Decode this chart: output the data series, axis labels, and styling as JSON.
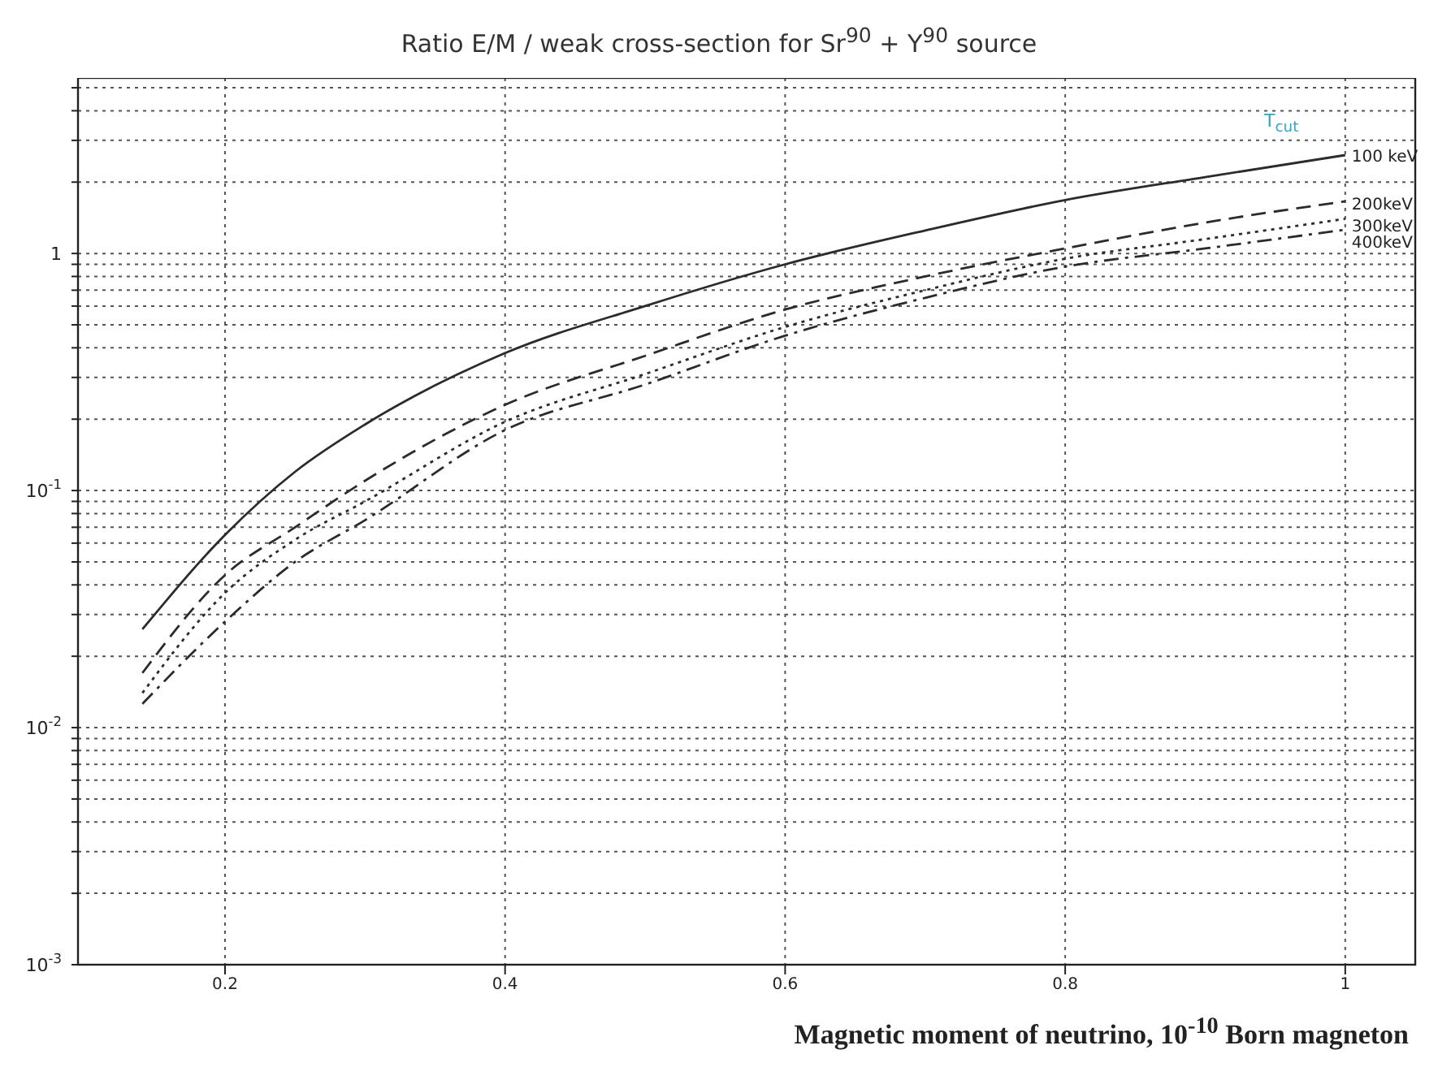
{
  "chart_data": {
    "type": "line",
    "title": "Ratio E/M / weak cross-section for Sr$^{90}$ + Y$^{90}$ source",
    "xlabel": "Magnetic moment of neutrino, 10$^{-10}$ Born magneton",
    "legend_title": "T$_{cut}$",
    "x": [
      0.141,
      0.2,
      0.25,
      0.3,
      0.4,
      0.5,
      0.6,
      0.7,
      0.8,
      0.9,
      1.0
    ],
    "series": [
      {
        "name": "100 keV",
        "color": "#2b2b2b",
        "line_style": "solid",
        "values": [
          0.026,
          0.065,
          0.12,
          0.19,
          0.38,
          0.6,
          0.9,
          1.25,
          1.68,
          2.1,
          2.6
        ]
      },
      {
        "name": "200keV",
        "color": "#2b2b2b",
        "line_style": "dashed",
        "values": [
          0.017,
          0.044,
          0.07,
          0.11,
          0.23,
          0.37,
          0.58,
          0.8,
          1.05,
          1.35,
          1.66
        ]
      },
      {
        "name": "300keV",
        "color": "#2b2b2b",
        "line_style": "dotted",
        "values": [
          0.014,
          0.037,
          0.062,
          0.09,
          0.195,
          0.31,
          0.49,
          0.7,
          0.95,
          1.15,
          1.4
        ]
      },
      {
        "name": "400keV",
        "color": "#2b2b2b",
        "line_style": "dashdot",
        "values": [
          0.0126,
          0.028,
          0.05,
          0.075,
          0.18,
          0.28,
          0.45,
          0.65,
          0.88,
          1.05,
          1.26
        ]
      }
    ],
    "log": "y",
    "xlim": [
      0.095,
      1.05
    ],
    "xticks": [
      0.2,
      0.4,
      0.6,
      0.8,
      1
    ],
    "ylim": [
      0.001,
      5.5
    ],
    "yticks": [
      {
        "value": 0.001,
        "label": "10$^{-3}$"
      },
      {
        "value": 0.002,
        "label": null
      },
      {
        "value": 0.003,
        "label": null
      },
      {
        "value": 0.004,
        "label": null
      },
      {
        "value": 0.005,
        "label": null
      },
      {
        "value": 0.006,
        "label": null
      },
      {
        "value": 0.007,
        "label": null
      },
      {
        "value": 0.008,
        "label": null
      },
      {
        "value": 0.009,
        "label": null
      },
      {
        "value": 0.01,
        "label": "10$^{-2}$"
      },
      {
        "value": 0.02,
        "label": null
      },
      {
        "value": 0.03,
        "label": null
      },
      {
        "value": 0.04,
        "label": null
      },
      {
        "value": 0.05,
        "label": null
      },
      {
        "value": 0.06,
        "label": null
      },
      {
        "value": 0.07,
        "label": null
      },
      {
        "value": 0.08,
        "label": null
      },
      {
        "value": 0.09,
        "label": null
      },
      {
        "value": 0.1,
        "label": "10$^{-1}$"
      },
      {
        "value": 0.2,
        "label": null
      },
      {
        "value": 0.3,
        "label": null
      },
      {
        "value": 0.4,
        "label": null
      },
      {
        "value": 0.5,
        "label": null
      },
      {
        "value": 0.6,
        "label": null
      },
      {
        "value": 0.7,
        "label": null
      },
      {
        "value": 0.8,
        "label": null
      },
      {
        "value": 0.9,
        "label": null
      },
      1,
      {
        "value": 2,
        "label": null
      },
      {
        "value": 3,
        "label": null
      },
      {
        "value": 4,
        "label": null
      },
      {
        "value": 5,
        "label": null
      }
    ],
    "grid": true,
    "marker": "none"
  }
}
